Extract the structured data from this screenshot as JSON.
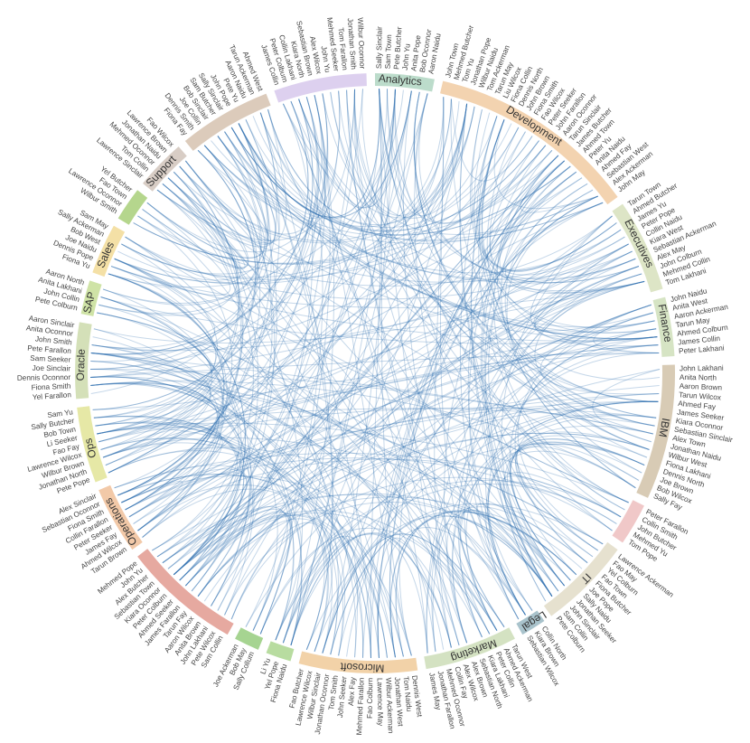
{
  "groups": [
    {
      "name": "Analytics",
      "color": "#bcdccb",
      "members": [
        "Sally Sinclair",
        "Sam Town",
        "Pete Butcher",
        "John Yu",
        "Anita Pope",
        "Bob Oconnor",
        "Aaron Naidu"
      ]
    },
    {
      "name": "Development",
      "color": "#f3d3b0",
      "members": [
        "John Town",
        "Mehmed Butcher",
        "Tom Yu",
        "Jonathan Pope",
        "Wilbur Naidu",
        "Tom Ackerman",
        "Tarun May",
        "Liu Wilcox",
        "Fiona Collin",
        "Dennis North",
        "John Brown",
        "Fiona Smith",
        "Fao Wilcox",
        "Peter Seeker",
        "John Farallon",
        "Aaron Oconnor",
        "Tarun Sinclair",
        "James Butcher",
        "Ahmed Town",
        "Peter Yu",
        "Anita Naidu",
        "Ahmed Fay",
        "Sebastian West",
        "Alex Ackerman",
        "John May"
      ]
    },
    {
      "name": "Executives",
      "color": "#dde5c6",
      "members": [
        "Tarun Town",
        "Ahmed Butcher",
        "James Yu",
        "Peter Pope",
        "Collin Naidu",
        "Kiara West",
        "Sebastian Ackerman",
        "Alex May",
        "John Colburn",
        "Mehmed Collin",
        "Tom Lakhani"
      ]
    },
    {
      "name": "Finance",
      "color": "#d6e4c4",
      "members": [
        "John Naidu",
        "Anita West",
        "Aaron Ackerman",
        "Tarun May",
        "Ahmed Colburn",
        "James Collin",
        "Peter Lakhani"
      ]
    },
    {
      "name": "IBM",
      "color": "#d8cbb5",
      "members": [
        "John Lakhani",
        "Anita North",
        "Aaron Brown",
        "Tarun Wilcox",
        "Ahmed Fay",
        "James Seeker",
        "Kiara Oconnor",
        "Sebastian Sinclair",
        "Alex Town",
        "Jonathan Naidu",
        "Wilbur West",
        "Fiona Lakhani",
        "Dennis North",
        "Joe Brown",
        "Bob Wilcox",
        "Sally Fay"
      ]
    },
    {
      "name": null,
      "color": "#f0c8c8",
      "members": [
        "Peter Farallon",
        "Collin Smith",
        "John Butcher",
        "Mehmed Yu",
        "Tom Pope"
      ]
    },
    {
      "name": "IT",
      "color": "#e6e1cf",
      "members": [
        "Lawrence Ackerman",
        "Fao May",
        "Yel Colburn",
        "Fao Town",
        "Fiona Butcher",
        "Joe Pope",
        "Sally Naidu",
        "Jonathan Seeker",
        "John Sinclair",
        "Sam Collin",
        "Pete Colburn"
      ]
    },
    {
      "name": "Legal",
      "color": "#a9c3cc",
      "members": [
        "Collin North",
        "Kiara Brown",
        "Sebastian Wilcox"
      ]
    },
    {
      "name": "Marketing",
      "color": "#d4e2c2",
      "members": [
        "Tarun West",
        "Ahmed Ackerman",
        "Peter Collin",
        "Kiara Lakhani",
        "Sebastian North",
        "Alex Brown",
        "Alex Wilcox",
        "Collin Fay",
        "Mehmed Oconnor",
        "Jonathan Farallon",
        "James May"
      ]
    },
    {
      "name": "Microsoft",
      "color": "#f2d2a8",
      "members": [
        "Dennis West",
        "Tom Naidu",
        "Jonathan West",
        "Wilbur Ackerman",
        "Lawrence May",
        "Fao Colburn",
        "Mehmed Farallon",
        "Alex Fay",
        "John Seeker",
        "Tom Smith",
        "Jonathan Oconnor",
        "Wilbur Sinclair",
        "Lawrence Wilcox",
        "Fao Butcher"
      ]
    },
    {
      "name": null,
      "color": "#b8dca0",
      "members": [
        "Fiona Naidu",
        "Yel Pope",
        "Li Yu"
      ]
    },
    {
      "name": null,
      "color": "#a6d491",
      "members": [
        "Sally Collum",
        "Bob May",
        "Joe Ackerman"
      ]
    },
    {
      "name": null,
      "color": "#e6a9a0",
      "members": [
        "Sam Collin",
        "Pete Wilcox",
        "John Lakhani",
        "Anita Brown",
        "Aaron Wilcox",
        "Tarun Fay",
        "James Farallon",
        "Ahmed Seeker",
        "Peter Colburn",
        "Kiara Oconnor",
        "Sebastian Town",
        "Alex Butcher",
        "John Yu",
        "Mehmed Pope"
      ]
    },
    {
      "name": "Operations",
      "color": "#f2c9a8",
      "members": [
        "Tarun Brown",
        "Ahmed Wilcox",
        "James Fay",
        "Peter Seeker",
        "Collin Farallon",
        "Fiona Smith",
        "Sebastian Oconnor",
        "Alex Sinclair"
      ]
    },
    {
      "name": "Ops",
      "color": "#e6e8a6",
      "members": [
        "Pete Pope",
        "Jonathan North",
        "Wilbur Brown",
        "Lawrence Wilcox",
        "Fao Fay",
        "Li Seeker",
        "Bob Town",
        "Sally Butcher",
        "Sam Yu"
      ]
    },
    {
      "name": "Oracle",
      "color": "#d4e0b8",
      "members": [
        "Yel Farallon",
        "Fiona Smith",
        "Dennis Oconnor",
        "Joe Sinclair",
        "Sam Seeker",
        "Pete Farallon",
        "John Smith",
        "Anita Oconnor",
        "Aaron Sinclair"
      ]
    },
    {
      "name": "SAP",
      "color": "#cfe3a6",
      "members": [
        "Pete Colburn",
        "John Collin",
        "Anita Lakhani",
        "Aaron North"
      ]
    },
    {
      "name": "Sales",
      "color": "#f4e0a6",
      "members": [
        "Fiona Yu",
        "Dennis Pope",
        "Joe Naidu",
        "Bob West",
        "Sally Ackerman",
        "Sam May"
      ]
    },
    {
      "name": null,
      "color": "#b5d68d",
      "members": [
        "Wilbur Smith",
        "Lawrence Oconnor",
        "Fao Town",
        "Yel Butcher"
      ]
    },
    {
      "name": "Support",
      "color": "#d8cdc5",
      "members": [
        "Lawrence Sinclair",
        "Tom Collin",
        "Mehmed Oconnor",
        "Jonathan Naidu",
        "Lawrence Brown",
        "Fao Wilcox"
      ]
    },
    {
      "name": null,
      "color": "#dccbbb",
      "members": [
        "Fiona Fay",
        "Dennis Smith",
        "Joe Collin",
        "Bob Sinclair",
        "Sam Butcher",
        "Sally Sinclair",
        "John Pope",
        "Pete Yu",
        "Aaron Naidu",
        "Tarun Ackerman",
        "Ahmed West"
      ]
    },
    {
      "name": null,
      "color": "#ddd0ef",
      "members": [
        "James Collin",
        "Peter Colburn",
        "Collin Lakhani",
        "Kiara North",
        "Sebastian Brown",
        "Alex Wilcox",
        "John Yu",
        "Mehmed Seeker",
        "Tom Farallon",
        "Jonathan Smith",
        "Wilbur Oconnor"
      ]
    }
  ]
}
